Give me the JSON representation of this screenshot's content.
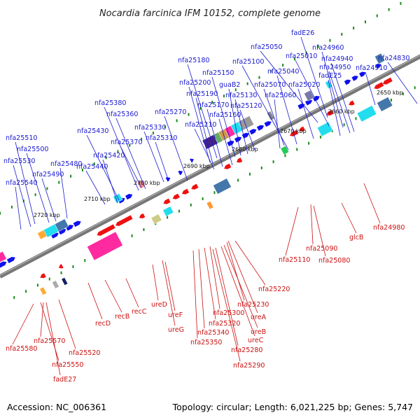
{
  "title": "Nocardia farcinica IFM 10152, complete genome",
  "footer": {
    "accession": "Accession: NC_006361",
    "summary": "Topology: circular; Length: 6,021,225 bp; Genes: 5,747"
  },
  "ticks": [
    "2650 kbp",
    "2660 kbp",
    "2670 kbp",
    "2680 kbp",
    "2690 kbp",
    "2700 kbp",
    "2710 kbp",
    "2720 kbp"
  ],
  "top_labels": [
    "fadE26",
    "nfa25050",
    "nfa24960",
    "nfa24830",
    "nfa25010",
    "nfa24940",
    "nfa25100",
    "nfa25180",
    "nfa24950",
    "nfa24910",
    "nfa25040",
    "fadE25",
    "nfa25150",
    "nfa25200",
    "guaB2",
    "nfa25070",
    "nfa25020",
    "nfa25190",
    "nfa25130",
    "nfa25060",
    "nfa25380",
    "nfa25170",
    "nfa25120",
    "nfa25360",
    "nfa25270",
    "nfa25160",
    "nfa25330",
    "nfa25210",
    "nfa25430",
    "nfa25370",
    "nfa25310",
    "nfa25510",
    "nfa25500",
    "nfa25420",
    "nfa25530",
    "nfa25480",
    "nfa25440",
    "nfa25490",
    "nfa25540"
  ],
  "bottom_labels": [
    "nfa24980",
    "glcB",
    "nfa25090",
    "nfa25080",
    "nfa25110",
    "nfa25220",
    "nfa25230",
    "ureA",
    "ureB",
    "ureC",
    "nfa25300",
    "nfa25320",
    "nfa25340",
    "nfa25350",
    "nfa25280",
    "nfa25290",
    "recC",
    "ureD",
    "recB",
    "ureF",
    "recD",
    "ureG",
    "nfa25580",
    "nfa25570",
    "nfa25520",
    "nfa25550",
    "fadE27"
  ],
  "colors": {
    "backbone": "#777777",
    "forward": "#1010ee",
    "reverse": "#ee1111",
    "top_label": "#1a1ad0",
    "bottom_label": "#cc1111",
    "dots": "#1a8a1a",
    "pink": "#ff2aa0",
    "cyan": "#22ddee",
    "steel": "#4477aa"
  }
}
